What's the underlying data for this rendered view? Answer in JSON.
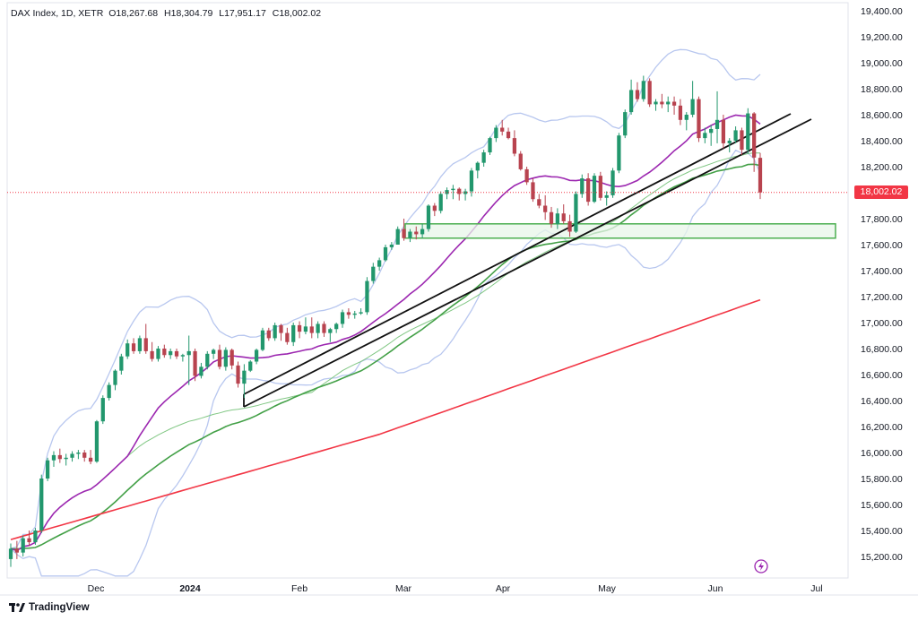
{
  "header": {
    "symbol": "DAX Index, 1D, XETR",
    "open": "O18,267.68",
    "high": "H18,304.79",
    "low": "L17,951.17",
    "close": "C18,002.02"
  },
  "brand": {
    "name": "TradingView",
    "icon": "tradingview-logo-icon"
  },
  "last_price_label": "18,002.02",
  "colors": {
    "up": "#26a69a",
    "up_body": "#22976d",
    "down": "#c7283d",
    "down_body": "#b8434f",
    "sma200": "#f23645",
    "sma20": "#9c27b0",
    "ema50": "#43a047",
    "sma50": "#81c784",
    "bollinger": "#b8c7ef",
    "trendline": "#111111",
    "zone_fill": "#e8f5e9",
    "zone_border": "#4caf50",
    "last_price": "#f23645"
  },
  "chart_data": {
    "type": "candlestick",
    "instrument": "DAX Index, 1D, XETR",
    "y_ticks": [
      "15,200.00",
      "15,400.00",
      "15,600.00",
      "15,800.00",
      "16,000.00",
      "16,200.00",
      "16,400.00",
      "16,600.00",
      "16,800.00",
      "17,000.00",
      "17,200.00",
      "17,400.00",
      "17,600.00",
      "17,800.00",
      "18,000.00",
      "18,200.00",
      "18,400.00",
      "18,600.00",
      "18,800.00",
      "19,000.00",
      "19,200.00",
      "19,400.00"
    ],
    "x_ticks": [
      "Dec",
      "2024",
      "Feb",
      "Mar",
      "Apr",
      "May",
      "Jun",
      "Jul"
    ],
    "ylim": [
      15050,
      19470
    ],
    "last_price": 18002.02,
    "candles": [
      [
        15180,
        15300,
        15120,
        15260
      ],
      [
        15260,
        15320,
        15180,
        15230
      ],
      [
        15230,
        15360,
        15200,
        15340
      ],
      [
        15340,
        15400,
        15280,
        15310
      ],
      [
        15310,
        15420,
        15290,
        15400
      ],
      [
        15400,
        15830,
        15380,
        15800
      ],
      [
        15800,
        15960,
        15780,
        15940
      ],
      [
        15940,
        16010,
        15890,
        15980
      ],
      [
        15980,
        16030,
        15920,
        15950
      ],
      [
        15950,
        15990,
        15900,
        15960
      ],
      [
        15960,
        16010,
        15930,
        15990
      ],
      [
        15990,
        16020,
        15950,
        16000
      ],
      [
        16000,
        16020,
        15930,
        15960
      ],
      [
        15960,
        16020,
        15910,
        15930
      ],
      [
        15930,
        16250,
        15920,
        16240
      ],
      [
        16240,
        16440,
        16220,
        16420
      ],
      [
        16420,
        16540,
        16400,
        16520
      ],
      [
        16520,
        16640,
        16480,
        16630
      ],
      [
        16630,
        16760,
        16600,
        16740
      ],
      [
        16740,
        16870,
        16720,
        16840
      ],
      [
        16840,
        16880,
        16760,
        16780
      ],
      [
        16780,
        16900,
        16760,
        16880
      ],
      [
        16880,
        16990,
        16760,
        16780
      ],
      [
        16780,
        16850,
        16700,
        16720
      ],
      [
        16720,
        16820,
        16700,
        16800
      ],
      [
        16800,
        16830,
        16730,
        16750
      ],
      [
        16750,
        16800,
        16720,
        16780
      ],
      [
        16780,
        16800,
        16720,
        16740
      ],
      [
        16740,
        16760,
        16700,
        16750
      ],
      [
        16750,
        16900,
        16520,
        16780
      ],
      [
        16780,
        16800,
        16550,
        16590
      ],
      [
        16590,
        16690,
        16570,
        16660
      ],
      [
        16660,
        16780,
        16640,
        16760
      ],
      [
        16760,
        16800,
        16720,
        16790
      ],
      [
        16790,
        16830,
        16640,
        16660
      ],
      [
        16660,
        16810,
        16630,
        16790
      ],
      [
        16790,
        16800,
        16640,
        16670
      ],
      [
        16670,
        16700,
        16500,
        16530
      ],
      [
        16530,
        16680,
        16420,
        16630
      ],
      [
        16630,
        16710,
        16620,
        16700
      ],
      [
        16700,
        16800,
        16680,
        16790
      ],
      [
        16790,
        16960,
        16780,
        16940
      ],
      [
        16940,
        16960,
        16860,
        16880
      ],
      [
        16880,
        17000,
        16860,
        16980
      ],
      [
        16980,
        16990,
        16860,
        16920
      ],
      [
        16920,
        16960,
        16830,
        16850
      ],
      [
        16850,
        17000,
        16820,
        16980
      ],
      [
        16980,
        17010,
        16880,
        16930
      ],
      [
        16930,
        17040,
        16910,
        16970
      ],
      [
        16970,
        17040,
        16880,
        16920
      ],
      [
        16920,
        17010,
        16880,
        16990
      ],
      [
        16990,
        17010,
        16890,
        16920
      ],
      [
        16920,
        16960,
        16850,
        16950
      ],
      [
        16950,
        17000,
        16920,
        16990
      ],
      [
        16990,
        17100,
        16960,
        17080
      ],
      [
        17080,
        17110,
        17030,
        17060
      ],
      [
        17060,
        17090,
        17030,
        17070
      ],
      [
        17070,
        17110,
        17060,
        17080
      ],
      [
        17080,
        17350,
        17060,
        17320
      ],
      [
        17320,
        17460,
        17300,
        17430
      ],
      [
        17430,
        17500,
        17400,
        17480
      ],
      [
        17480,
        17600,
        17470,
        17580
      ],
      [
        17580,
        17620,
        17560,
        17600
      ],
      [
        17600,
        17740,
        17600,
        17720
      ],
      [
        17720,
        17800,
        17630,
        17650
      ],
      [
        17650,
        17720,
        17620,
        17700
      ],
      [
        17700,
        17740,
        17640,
        17680
      ],
      [
        17680,
        17760,
        17650,
        17720
      ],
      [
        17720,
        17910,
        17700,
        17900
      ],
      [
        17900,
        17920,
        17820,
        17860
      ],
      [
        17860,
        18010,
        17840,
        17990
      ],
      [
        17990,
        18040,
        17950,
        18020
      ],
      [
        18020,
        18060,
        17950,
        18030
      ],
      [
        18030,
        18040,
        17940,
        17990
      ],
      [
        17990,
        18030,
        17940,
        18010
      ],
      [
        18010,
        18190,
        17970,
        18170
      ],
      [
        18170,
        18240,
        18110,
        18230
      ],
      [
        18230,
        18330,
        18200,
        18310
      ],
      [
        18310,
        18430,
        18290,
        18420
      ],
      [
        18420,
        18520,
        18390,
        18500
      ],
      [
        18500,
        18560,
        18440,
        18470
      ],
      [
        18470,
        18500,
        18410,
        18420
      ],
      [
        18420,
        18480,
        18280,
        18300
      ],
      [
        18300,
        18320,
        18170,
        18180
      ],
      [
        18180,
        18200,
        18060,
        18080
      ],
      [
        18080,
        18110,
        17930,
        17950
      ],
      [
        17950,
        17990,
        17880,
        17900
      ],
      [
        17900,
        17980,
        17790,
        17850
      ],
      [
        17850,
        17890,
        17730,
        17760
      ],
      [
        17760,
        17880,
        17720,
        17840
      ],
      [
        17840,
        17910,
        17760,
        17780
      ],
      [
        17780,
        17830,
        17660,
        17700
      ],
      [
        17700,
        18010,
        17690,
        17990
      ],
      [
        17990,
        18140,
        17960,
        18110
      ],
      [
        18110,
        18150,
        17900,
        17930
      ],
      [
        17930,
        18150,
        17920,
        18130
      ],
      [
        18130,
        18160,
        17940,
        17960
      ],
      [
        17960,
        18010,
        17900,
        17980
      ],
      [
        17980,
        18190,
        17960,
        18170
      ],
      [
        18170,
        18460,
        18150,
        18440
      ],
      [
        18440,
        18640,
        18420,
        18620
      ],
      [
        18620,
        18870,
        18600,
        18790
      ],
      [
        18790,
        18850,
        18700,
        18720
      ],
      [
        18720,
        18900,
        18700,
        18860
      ],
      [
        18860,
        18880,
        18660,
        18680
      ],
      [
        18680,
        18720,
        18630,
        18700
      ],
      [
        18700,
        18760,
        18650,
        18680
      ],
      [
        18680,
        18740,
        18620,
        18700
      ],
      [
        18700,
        18740,
        18600,
        18670
      ],
      [
        18670,
        18720,
        18520,
        18560
      ],
      [
        18560,
        18620,
        18480,
        18600
      ],
      [
        18600,
        18860,
        18580,
        18720
      ],
      [
        18720,
        18740,
        18390,
        18420
      ],
      [
        18420,
        18500,
        18380,
        18460
      ],
      [
        18460,
        18520,
        18360,
        18490
      ],
      [
        18490,
        18780,
        18380,
        18560
      ],
      [
        18560,
        18600,
        18340,
        18380
      ],
      [
        18380,
        18420,
        18310,
        18400
      ],
      [
        18400,
        18510,
        18380,
        18480
      ],
      [
        18480,
        18500,
        18290,
        18330
      ],
      [
        18330,
        18650,
        18300,
        18610
      ],
      [
        18610,
        18620,
        18160,
        18270
      ],
      [
        18268,
        18305,
        17951,
        18002
      ]
    ],
    "annotations": {
      "support_zone": [
        17650,
        17760
      ],
      "trendlines": 2,
      "indicators": [
        "SMA 200",
        "SMA 20",
        "EMA 50",
        "SMA 50",
        "Bollinger Bands"
      ]
    }
  }
}
